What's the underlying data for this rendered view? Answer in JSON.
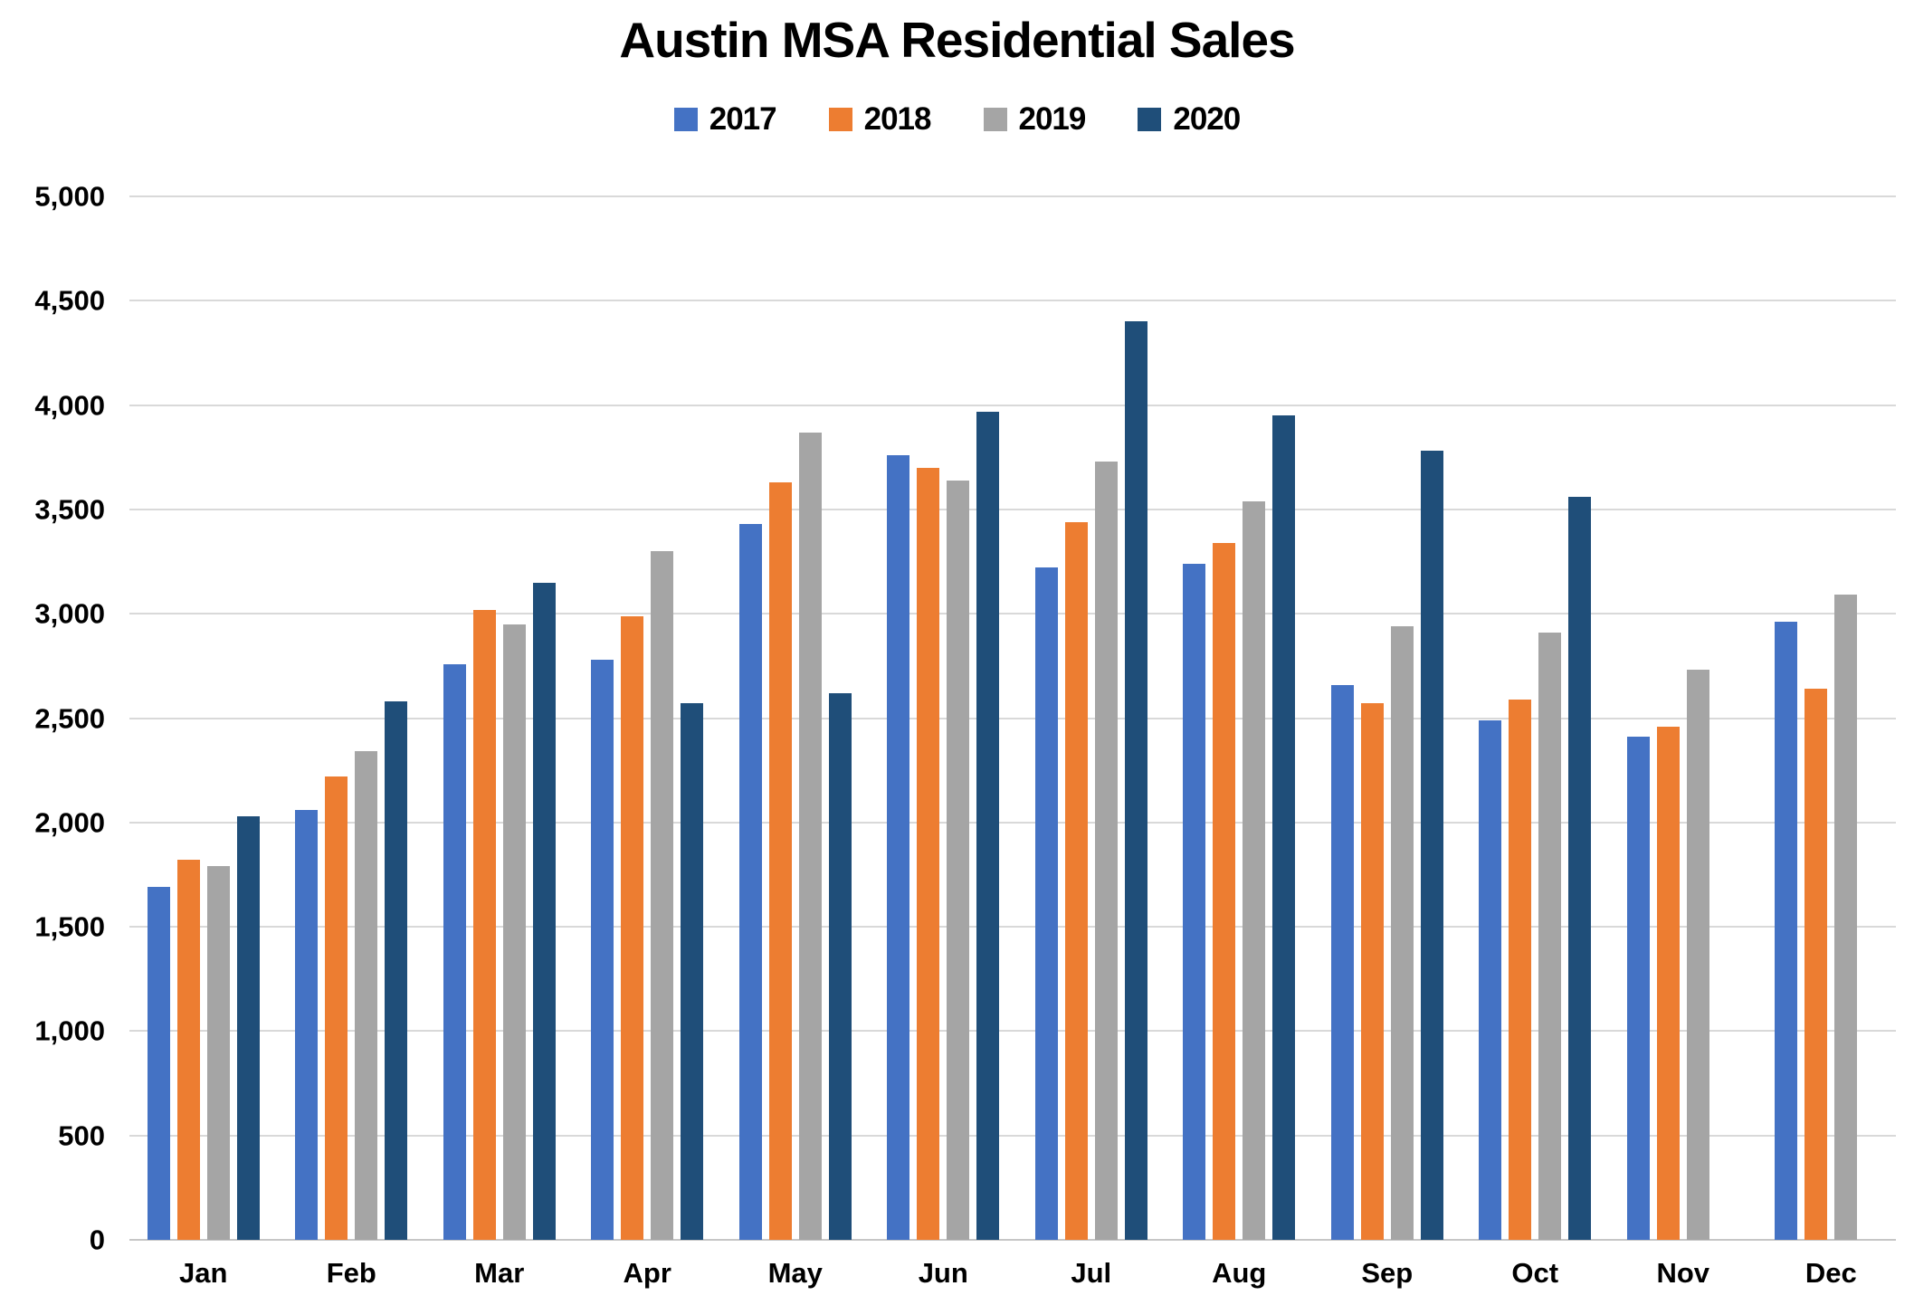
{
  "chart_data": {
    "type": "bar",
    "title": "Austin MSA Residential Sales",
    "xlabel": "",
    "ylabel": "",
    "ylim": [
      0,
      5000
    ],
    "ytick_step": 500,
    "ytick_labels": [
      "0",
      "500",
      "1,000",
      "1,500",
      "2,000",
      "2,500",
      "3,000",
      "3,500",
      "4,000",
      "4,500",
      "5,000"
    ],
    "grid": true,
    "legend_position": "top",
    "categories": [
      "Jan",
      "Feb",
      "Mar",
      "Apr",
      "May",
      "Jun",
      "Jul",
      "Aug",
      "Sep",
      "Oct",
      "Nov",
      "Dec"
    ],
    "series": [
      {
        "name": "2017",
        "color": "#4472C4",
        "values": [
          1690,
          2060,
          2760,
          2780,
          3430,
          3760,
          3220,
          3240,
          2660,
          2490,
          2410,
          2960
        ]
      },
      {
        "name": "2018",
        "color": "#ED7D31",
        "values": [
          1820,
          2220,
          3020,
          2990,
          3630,
          3700,
          3440,
          3340,
          2570,
          2590,
          2460,
          2640
        ]
      },
      {
        "name": "2019",
        "color": "#A5A5A5",
        "values": [
          1790,
          2340,
          2950,
          3300,
          3870,
          3640,
          3730,
          3540,
          2940,
          2910,
          2730,
          3090
        ]
      },
      {
        "name": "2020",
        "color": "#1F4E79",
        "values": [
          2030,
          2580,
          3150,
          2570,
          2620,
          3970,
          4400,
          3950,
          3780,
          3560,
          null,
          null
        ]
      }
    ],
    "colors": {
      "gridline": "#D9D9D9",
      "axis_line": "#C6C6C6",
      "text": "#000000",
      "background": "#FFFFFF"
    }
  }
}
